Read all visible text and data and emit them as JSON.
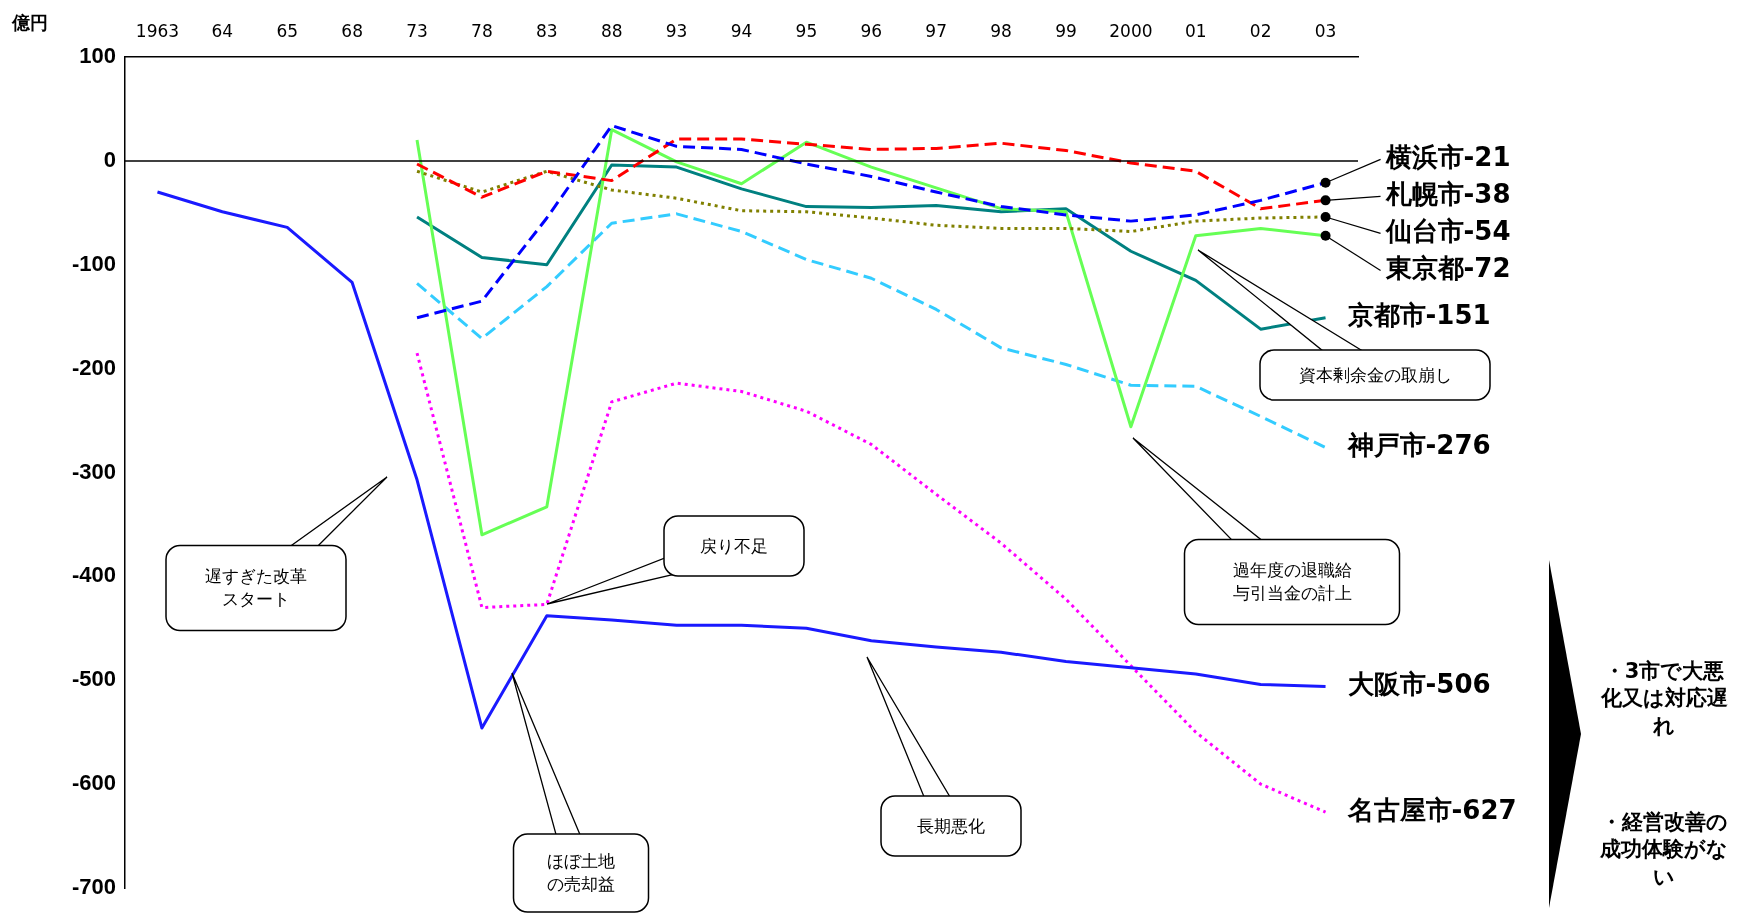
{
  "chart_data": {
    "type": "line",
    "ylabel": "億円",
    "categories": [
      "1963",
      "64",
      "65",
      "68",
      "73",
      "78",
      "83",
      "88",
      "93",
      "94",
      "95",
      "96",
      "97",
      "98",
      "99",
      "2000",
      "01",
      "02",
      "03"
    ],
    "legend": "right",
    "ylim": [
      -700,
      100
    ],
    "yticks": [
      100,
      0,
      -100,
      -200,
      -300,
      -400,
      -500,
      -600,
      -700
    ],
    "marker": "none",
    "ref_lines": [
      {
        "axis": "y",
        "value": 0,
        "color": "#000000"
      }
    ],
    "series": [
      {
        "name": "横浜市-21",
        "color": "#0000ff",
        "line_style": "dashed",
        "values": [
          null,
          null,
          null,
          null,
          -151,
          -135,
          -55,
          34,
          14,
          11,
          -3,
          -15,
          -30,
          -44,
          -52,
          -58,
          -52,
          -38,
          -21
        ]
      },
      {
        "name": "札幌市-38",
        "color": "#ff0000",
        "line_style": "dashed",
        "values": [
          null,
          null,
          null,
          null,
          -3,
          -35,
          -10,
          -19,
          21,
          21,
          16,
          11,
          12,
          17,
          10,
          -2,
          -10,
          -46,
          -38
        ]
      },
      {
        "name": "仙台市-54",
        "color": "#808000",
        "line_style": "dotted",
        "values": [
          null,
          null,
          null,
          null,
          -10,
          -30,
          -10,
          -28,
          -36,
          -48,
          -49,
          -55,
          -62,
          -65,
          -65,
          -68,
          -58,
          -55,
          -54
        ]
      },
      {
        "name": "東京都-72",
        "color": "#66ff55",
        "line_style": "solid",
        "values": [
          null,
          null,
          null,
          null,
          20,
          -360,
          -333,
          30,
          -1,
          -22,
          18,
          -6,
          -26,
          -46,
          -49,
          -256,
          -72,
          -65,
          -72
        ]
      },
      {
        "name": "京都市-151",
        "color": "#008080",
        "line_style": "solid",
        "values": [
          null,
          null,
          null,
          null,
          -54,
          -93,
          -100,
          -4,
          -6,
          -27,
          -44,
          -45,
          -43,
          -49,
          -46,
          -87,
          -115,
          -162,
          -151
        ]
      },
      {
        "name": "神戸市-276",
        "color": "#33ccff",
        "line_style": "dashed",
        "values": [
          null,
          null,
          null,
          null,
          -118,
          -171,
          -121,
          -60,
          -51,
          -68,
          -95,
          -113,
          -143,
          -180,
          -196,
          -216,
          -217,
          -246,
          -276
        ]
      },
      {
        "name": "大阪市-506",
        "color": "#1a1aff",
        "line_style": "solid",
        "values": [
          -30,
          -49,
          -64,
          -117,
          -307,
          -546,
          -438,
          -442,
          -447,
          -447,
          -450,
          -462,
          -468,
          -473,
          -482,
          -488,
          -494,
          -504,
          -506
        ]
      },
      {
        "name": "名古屋市-627",
        "color": "#ff00ff",
        "line_style": "dotted",
        "values": [
          null,
          null,
          null,
          null,
          -185,
          -430,
          -427,
          -232,
          -214,
          -222,
          -241,
          -273,
          -321,
          -368,
          -422,
          -486,
          -550,
          -600,
          -627
        ]
      }
    ],
    "annotations": [
      "遅すぎた改革スタート",
      "戻り不足",
      "ほぼ土地の売却益",
      "長期悪化",
      "資本剰余金の取崩し",
      "過年度の退職給与引当金の計上",
      "・3市で大悪化又は対応遅れ",
      "・経営改善の成功体験がない"
    ]
  }
}
